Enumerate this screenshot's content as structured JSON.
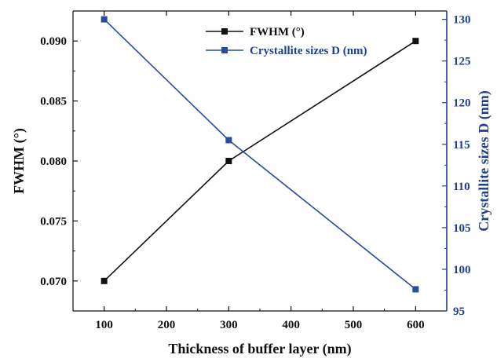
{
  "chart_data": {
    "type": "line",
    "title": "",
    "xlabel": "Thickness of buffer layer (nm)",
    "xlim": [
      50,
      650
    ],
    "xticks": [
      100,
      200,
      300,
      400,
      500,
      600
    ],
    "grid": false,
    "legend_position": "top-center",
    "y_left": {
      "label": "FWHM (°)",
      "lim": [
        0.0675,
        0.0925
      ],
      "ticks": [
        "0.070",
        "0.075",
        "0.080",
        "0.085",
        "0.090"
      ]
    },
    "y_right": {
      "label": "Crystallite sizes D (nm)",
      "lim": [
        95,
        131
      ],
      "ticks": [
        "95",
        "100",
        "105",
        "110",
        "115",
        "120",
        "125",
        "130"
      ]
    },
    "series": [
      {
        "name": "FWHM (°)",
        "axis": "left",
        "color": "#111111",
        "marker": "square",
        "x": [
          100,
          300,
          600
        ],
        "y": [
          0.07,
          0.08,
          0.09
        ]
      },
      {
        "name": "Crystallite sizes D (nm)",
        "axis": "right",
        "color": "#2a4d9b",
        "marker": "square",
        "x": [
          100,
          300,
          600
        ],
        "y": [
          130.0,
          115.5,
          97.6
        ]
      }
    ]
  }
}
